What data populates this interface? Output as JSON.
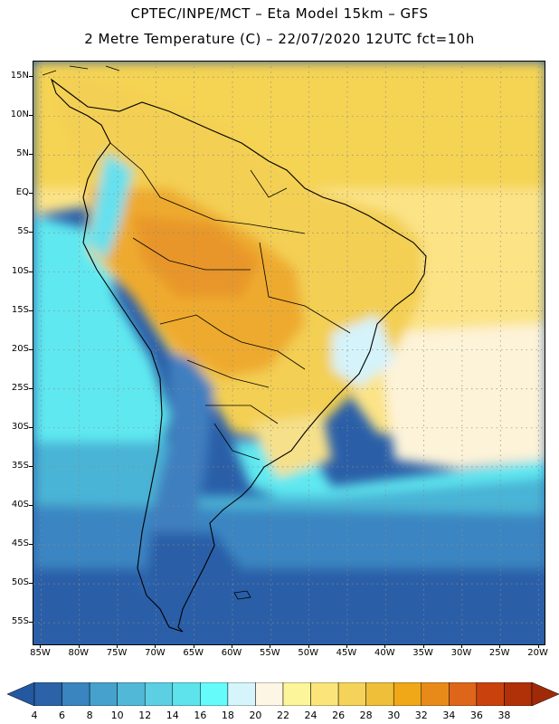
{
  "title": {
    "line1": "CPTEC/INPE/MCT –  Eta Model 15km – GFS",
    "line2": "2 Metre Temperature (C) – 22/07/2020 12UTC fct=10h"
  },
  "map": {
    "lon_min": -86,
    "lon_max": -19,
    "lat_min": -58,
    "lat_max": 17,
    "lat_ticks": [
      {
        "value": 15,
        "label": "15N"
      },
      {
        "value": 10,
        "label": "10N"
      },
      {
        "value": 5,
        "label": "5N"
      },
      {
        "value": 0,
        "label": "EQ"
      },
      {
        "value": -5,
        "label": "5S"
      },
      {
        "value": -10,
        "label": "10S"
      },
      {
        "value": -15,
        "label": "15S"
      },
      {
        "value": -20,
        "label": "20S"
      },
      {
        "value": -25,
        "label": "25S"
      },
      {
        "value": -30,
        "label": "30S"
      },
      {
        "value": -35,
        "label": "35S"
      },
      {
        "value": -40,
        "label": "40S"
      },
      {
        "value": -45,
        "label": "45S"
      },
      {
        "value": -50,
        "label": "50S"
      },
      {
        "value": -55,
        "label": "55S"
      }
    ],
    "lon_ticks": [
      {
        "value": -85,
        "label": "85W"
      },
      {
        "value": -80,
        "label": "80W"
      },
      {
        "value": -75,
        "label": "75W"
      },
      {
        "value": -70,
        "label": "70W"
      },
      {
        "value": -65,
        "label": "65W"
      },
      {
        "value": -60,
        "label": "60W"
      },
      {
        "value": -55,
        "label": "55W"
      },
      {
        "value": -50,
        "label": "50W"
      },
      {
        "value": -45,
        "label": "45W"
      },
      {
        "value": -40,
        "label": "40W"
      },
      {
        "value": -35,
        "label": "35W"
      },
      {
        "value": -30,
        "label": "30W"
      },
      {
        "value": -25,
        "label": "25W"
      },
      {
        "value": -20,
        "label": "20W"
      }
    ],
    "grid_lines": "dotted"
  },
  "colorbar": {
    "levels": [
      4,
      6,
      8,
      10,
      12,
      14,
      16,
      18,
      20,
      22,
      24,
      26,
      28,
      30,
      32,
      34,
      36,
      38
    ],
    "colors": [
      "#2b62a8",
      "#3a84c0",
      "#46a2cc",
      "#52b8d8",
      "#5ccfe2",
      "#5ee3ec",
      "#66fbfb",
      "#d6f4fb",
      "#fdf6e4",
      "#fdf59a",
      "#fbe57a",
      "#f5d35a",
      "#efbf3a",
      "#f0a818",
      "#e88a1a",
      "#de661a",
      "#c9420e",
      "#b03008"
    ],
    "low_color": "#2458a0",
    "high_color": "#a02a08"
  },
  "colors": {
    "ocean_cold": "#2a5fa8",
    "ocean_mid": "#3b86c2",
    "ocean_cool": "#5cc6de",
    "ocean_cyan": "#5fe8f0",
    "ocean_light": "#d5f3fa",
    "ocean_cream": "#fdf3d8",
    "warm_yellow": "#f6d86a",
    "land_orange": "#eeb03a",
    "land_hot": "#e8962a",
    "border": "#000000"
  }
}
